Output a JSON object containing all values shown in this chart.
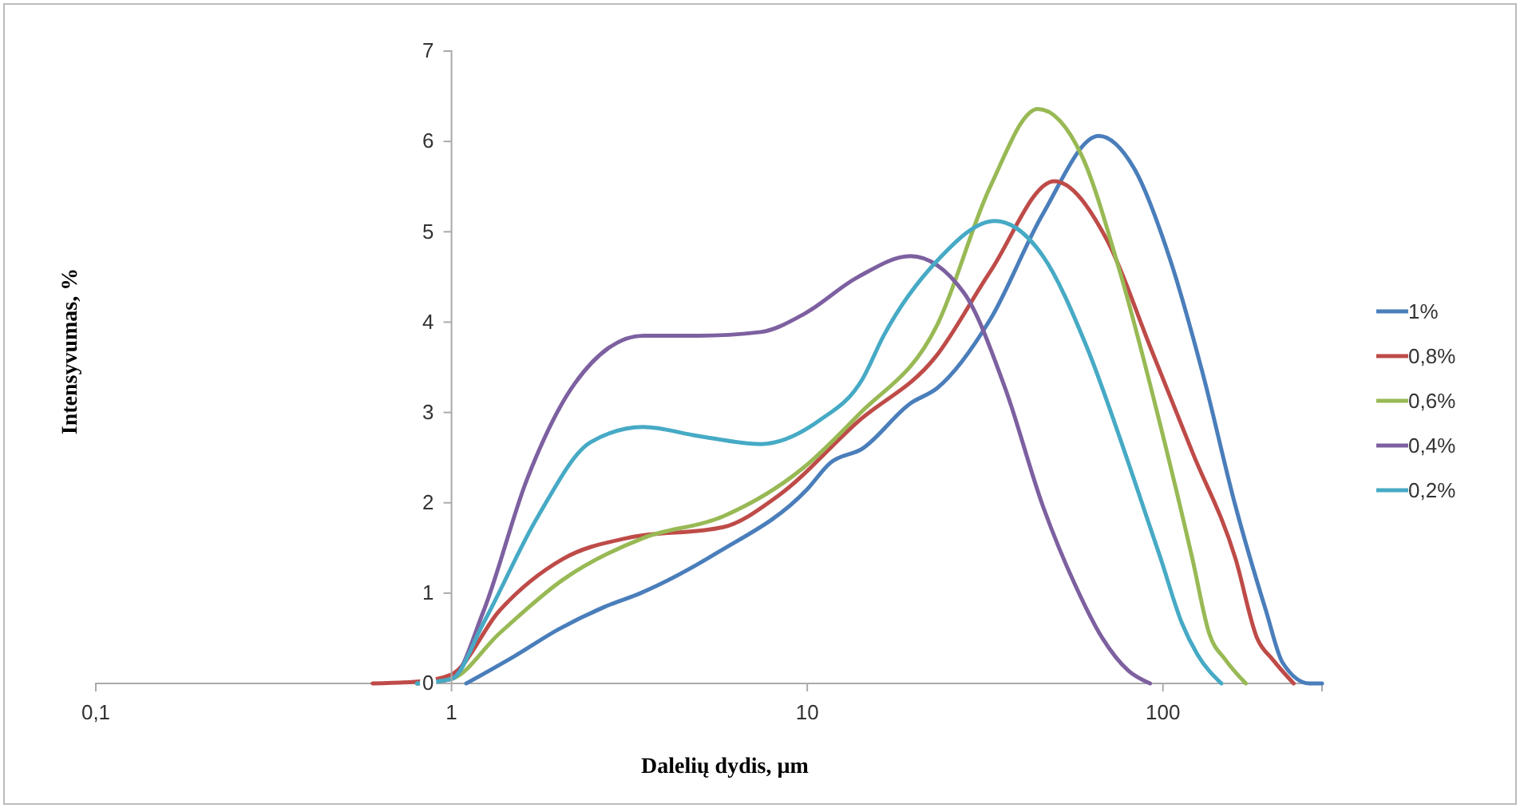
{
  "chart_data": {
    "type": "line",
    "xlabel": "Dalelių dydis, µm",
    "ylabel": "Intensyvumas, %",
    "log": "x",
    "xlim": [
      0.1,
      280
    ],
    "xticks": [
      {
        "value": 0.1,
        "label": "0,1"
      },
      1,
      10,
      100
    ],
    "ylim": [
      0,
      7
    ],
    "yticks": [
      0,
      1,
      2,
      3,
      4,
      5,
      6,
      7
    ],
    "grid": false,
    "legend": "right",
    "marker": "none",
    "line_style": "solid",
    "series": [
      {
        "name": "1%",
        "color": "#4a7ebb",
        "x": [
          1.1,
          1.5,
          2,
          2.7,
          3.4,
          5.6,
          10,
          11.6,
          14.3,
          19.5,
          23.2,
          32.7,
          46,
          66,
          83,
          105,
          129,
          160,
          195,
          217,
          258,
          280
        ],
        "values": [
          0,
          0.3,
          0.6,
          0.85,
          1.0,
          1.45,
          2.15,
          2.44,
          2.6,
          3.1,
          3.27,
          4.03,
          5.2,
          6.06,
          5.7,
          4.68,
          3.45,
          1.96,
          0.8,
          0.23,
          0,
          0
        ]
      },
      {
        "name": "0,8%",
        "color": "#be4b48",
        "x": [
          0.6,
          0.8,
          1,
          1.36,
          2.06,
          3.12,
          5.8,
          8.3,
          13.9,
          23,
          32.7,
          49.5,
          69.6,
          92,
          121,
          160,
          184,
          204,
          233
        ],
        "values": [
          0,
          0.02,
          0.1,
          0.8,
          1.38,
          1.61,
          1.73,
          2.08,
          2.9,
          3.62,
          4.56,
          5.56,
          4.91,
          3.73,
          2.56,
          1.38,
          0.5,
          0.26,
          0
        ]
      },
      {
        "name": "0,6%",
        "color": "#98b954",
        "x": [
          0.8,
          1,
          1.36,
          2.06,
          3.46,
          5.8,
          9.7,
          13.9,
          23.2,
          32.7,
          44.5,
          59,
          75,
          98.6,
          121,
          135,
          150,
          171
        ],
        "values": [
          0,
          0.05,
          0.55,
          1.15,
          1.61,
          1.85,
          2.38,
          2.97,
          3.97,
          5.5,
          6.36,
          5.85,
          4.61,
          2.84,
          1.38,
          0.55,
          0.26,
          0
        ]
      },
      {
        "name": "0,4%",
        "color": "#7d60a0",
        "x": [
          0.8,
          1,
          1.23,
          1.63,
          2.22,
          3.46,
          4.93,
          7.4,
          9.7,
          13.9,
          19.5,
          27.5,
          36,
          46,
          56.8,
          67.6,
          80,
          92
        ],
        "values": [
          0,
          0.05,
          0.8,
          2.26,
          3.32,
          3.85,
          3.85,
          3.89,
          4.08,
          4.5,
          4.73,
          4.33,
          3.27,
          1.96,
          1.08,
          0.5,
          0.14,
          0
        ]
      },
      {
        "name": "0,2%",
        "color": "#46aac5",
        "x": [
          0.8,
          1,
          1.23,
          1.75,
          2.46,
          3.46,
          4.93,
          7.4,
          10.8,
          14.3,
          16.4,
          23.2,
          33.7,
          46,
          61,
          80,
          98.6,
          113,
          125,
          146
        ],
        "values": [
          0,
          0.05,
          0.67,
          1.85,
          2.67,
          2.84,
          2.74,
          2.65,
          2.91,
          3.37,
          3.85,
          4.68,
          5.12,
          4.73,
          3.73,
          2.44,
          1.38,
          0.67,
          0.32,
          0
        ]
      }
    ]
  }
}
